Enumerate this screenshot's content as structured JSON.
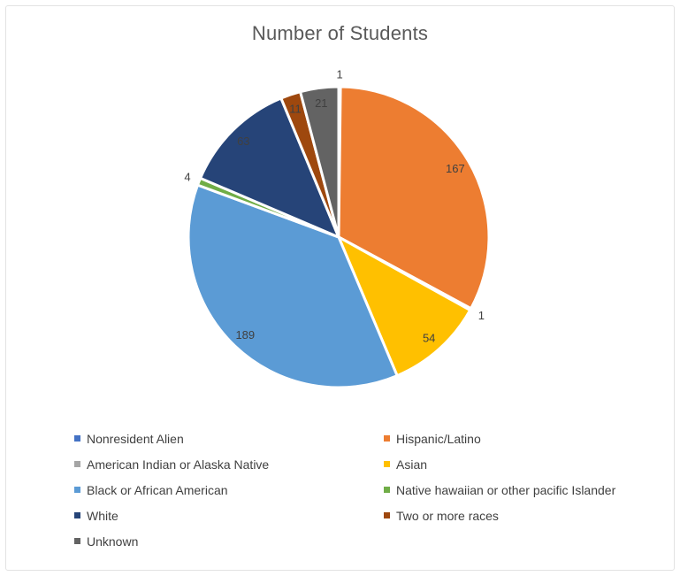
{
  "chart_data": {
    "type": "pie",
    "title": "Number of Students",
    "categories": [
      "Nonresident Alien",
      "Hispanic/Latino",
      "American Indian or Alaska Native",
      "Asian",
      "Black or African American",
      "Native hawaiian or other pacific Islander",
      "White",
      "Two or more races",
      "Unknown"
    ],
    "values": [
      1,
      167,
      1,
      54,
      189,
      4,
      63,
      11,
      21
    ],
    "colors": [
      "#4472C4",
      "#ED7D31",
      "#A5A5A5",
      "#FFC000",
      "#5B9BD5",
      "#70AD47",
      "#264478",
      "#9E480E",
      "#636363"
    ],
    "label_outside": [
      true,
      false,
      true,
      false,
      false,
      true,
      false,
      false,
      false
    ],
    "data_labels": "value",
    "start_angle_deg": 0,
    "direction": "clockwise",
    "legend_position": "bottom",
    "legend_columns": 2,
    "title_color": "#595959",
    "data_label_color": "#404040",
    "legend_text_color": "#404040",
    "slice_border_color": "#FFFFFF"
  }
}
